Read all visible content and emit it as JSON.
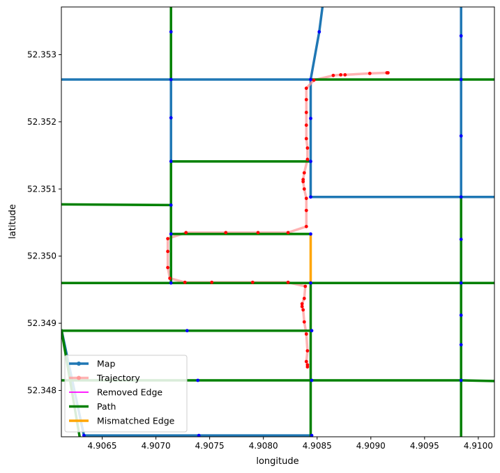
{
  "chart_data": {
    "type": "line",
    "xlabel": "longitude",
    "ylabel": "latitude",
    "xlim": [
      4.90612,
      4.91015
    ],
    "ylim": [
      52.34731,
      52.35371
    ],
    "xticks": [
      4.9065,
      4.907,
      4.9075,
      4.908,
      4.9085,
      4.909,
      4.9095,
      4.91
    ],
    "xtick_labels": [
      "4.9065",
      "4.9070",
      "4.9075",
      "4.9080",
      "4.9085",
      "4.9090",
      "4.9095",
      "4.9100"
    ],
    "yticks": [
      52.348,
      52.349,
      52.35,
      52.351,
      52.352,
      52.353
    ],
    "ytick_labels": [
      "52.348",
      "52.349",
      "52.350",
      "52.351",
      "52.352",
      "52.353"
    ],
    "grid": false,
    "legend_position": "lower-left",
    "legend": [
      {
        "label": "Map",
        "color": "#1f77b4",
        "kind": "line-marker"
      },
      {
        "label": "Trajectory",
        "color": "#ff9a9a",
        "kind": "line-marker"
      },
      {
        "label": "Removed Edge",
        "color": "#ff00ff",
        "kind": "line"
      },
      {
        "label": "Path",
        "color": "#008000",
        "kind": "line"
      },
      {
        "label": "Mismatched Edge",
        "color": "#ffa500",
        "kind": "line"
      }
    ],
    "map_edges": [
      [
        [
          4.90612,
          52.35263
        ],
        [
          4.90844,
          52.35263
        ]
      ],
      [
        [
          4.90714,
          52.35263
        ],
        [
          4.90714,
          52.35141
        ]
      ],
      [
        [
          4.90844,
          52.35263
        ],
        [
          4.90852,
          52.35334
        ],
        [
          4.90855,
          52.35371
        ]
      ],
      [
        [
          4.90844,
          52.35263
        ],
        [
          4.90844,
          52.35088
        ]
      ],
      [
        [
          4.90844,
          52.35088
        ],
        [
          4.91015,
          52.35088
        ]
      ],
      [
        [
          4.90984,
          52.35371
        ],
        [
          4.90984,
          52.35088
        ]
      ],
      [
        [
          4.90612,
          52.34891
        ],
        [
          4.90633,
          52.34733
        ]
      ],
      [
        [
          4.90633,
          52.34733
        ],
        [
          4.90845,
          52.34733
        ]
      ]
    ],
    "path_edges": [
      [
        [
          4.90714,
          52.35371
        ],
        [
          4.90714,
          52.35263
        ]
      ],
      [
        [
          4.90714,
          52.35141
        ],
        [
          4.90714,
          52.3496
        ]
      ],
      [
        [
          4.90714,
          52.35141
        ],
        [
          4.90844,
          52.35141
        ]
      ],
      [
        [
          4.90714,
          52.35033
        ],
        [
          4.90844,
          52.35033
        ]
      ],
      [
        [
          4.90612,
          52.35077
        ],
        [
          4.90714,
          52.35076
        ]
      ],
      [
        [
          4.90612,
          52.3496
        ],
        [
          4.91015,
          52.3496
        ]
      ],
      [
        [
          4.90844,
          52.3496
        ],
        [
          4.90844,
          52.34731
        ]
      ],
      [
        [
          4.90612,
          52.34889
        ],
        [
          4.90844,
          52.34889
        ]
      ],
      [
        [
          4.90612,
          52.34815
        ],
        [
          4.90984,
          52.34815
        ],
        [
          4.91015,
          52.34814
        ]
      ],
      [
        [
          4.90844,
          52.35263
        ],
        [
          4.91015,
          52.35263
        ]
      ],
      [
        [
          4.90984,
          52.35088
        ],
        [
          4.90984,
          52.34731
        ]
      ],
      [
        [
          4.90612,
          52.34891
        ],
        [
          4.90629,
          52.34731
        ]
      ]
    ],
    "mismatched_edges": [
      [
        [
          4.90844,
          52.35033
        ],
        [
          4.90844,
          52.3496
        ]
      ]
    ],
    "map_nodes": [
      [
        4.90714,
        52.35334
      ],
      [
        4.90714,
        52.35263
      ],
      [
        4.90714,
        52.35206
      ],
      [
        4.90714,
        52.35141
      ],
      [
        4.90714,
        52.35076
      ],
      [
        4.90714,
        52.35033
      ],
      [
        4.90714,
        52.3496
      ],
      [
        4.90852,
        52.35334
      ],
      [
        4.90844,
        52.35263
      ],
      [
        4.90844,
        52.35205
      ],
      [
        4.90844,
        52.35141
      ],
      [
        4.90844,
        52.35088
      ],
      [
        4.90844,
        52.35033
      ],
      [
        4.90844,
        52.3496
      ],
      [
        4.90845,
        52.34889
      ],
      [
        4.90845,
        52.34815
      ],
      [
        4.90845,
        52.34733
      ],
      [
        4.90984,
        52.35328
      ],
      [
        4.90984,
        52.35263
      ],
      [
        4.90984,
        52.35179
      ],
      [
        4.90984,
        52.35088
      ],
      [
        4.90984,
        52.35025
      ],
      [
        4.90984,
        52.3496
      ],
      [
        4.90984,
        52.34912
      ],
      [
        4.90984,
        52.34868
      ],
      [
        4.90984,
        52.34815
      ],
      [
        4.90729,
        52.34889
      ],
      [
        4.90739,
        52.34815
      ],
      [
        4.9074,
        52.34733
      ],
      [
        4.90633,
        52.34733
      ]
    ],
    "trajectory": [
      [
        4.90916,
        52.35273
      ],
      [
        4.90915,
        52.35273
      ],
      [
        4.90899,
        52.35272
      ],
      [
        4.90876,
        52.3527
      ],
      [
        4.90872,
        52.3527
      ],
      [
        4.90865,
        52.35269
      ],
      [
        4.90847,
        52.35262
      ],
      [
        4.9084,
        52.3525
      ],
      [
        4.9084,
        52.35233
      ],
      [
        4.9084,
        52.35214
      ],
      [
        4.9084,
        52.35195
      ],
      [
        4.9084,
        52.35175
      ],
      [
        4.90841,
        52.35161
      ],
      [
        4.90841,
        52.35144
      ],
      [
        4.90838,
        52.35124
      ],
      [
        4.90837,
        52.35114
      ],
      [
        4.90837,
        52.35111
      ],
      [
        4.90838,
        52.351
      ],
      [
        4.9084,
        52.35086
      ],
      [
        4.9084,
        52.35068
      ],
      [
        4.9084,
        52.35044
      ],
      [
        4.90823,
        52.35035
      ],
      [
        4.90795,
        52.35035
      ],
      [
        4.90765,
        52.35035
      ],
      [
        4.90728,
        52.35035
      ],
      [
        4.90711,
        52.35026
      ],
      [
        4.90711,
        52.35007
      ],
      [
        4.90711,
        52.34983
      ],
      [
        4.90713,
        52.34967
      ],
      [
        4.90727,
        52.34961
      ],
      [
        4.90752,
        52.34961
      ],
      [
        4.9079,
        52.34961
      ],
      [
        4.90823,
        52.34961
      ],
      [
        4.90839,
        52.34955
      ],
      [
        4.90838,
        52.34937
      ],
      [
        4.90836,
        52.34929
      ],
      [
        4.90836,
        52.34925
      ],
      [
        4.90837,
        52.3492
      ],
      [
        4.90838,
        52.34902
      ],
      [
        4.9084,
        52.34884
      ],
      [
        4.90841,
        52.34859
      ],
      [
        4.9084,
        52.34843
      ],
      [
        4.90841,
        52.34838
      ],
      [
        4.90841,
        52.34835
      ]
    ]
  }
}
